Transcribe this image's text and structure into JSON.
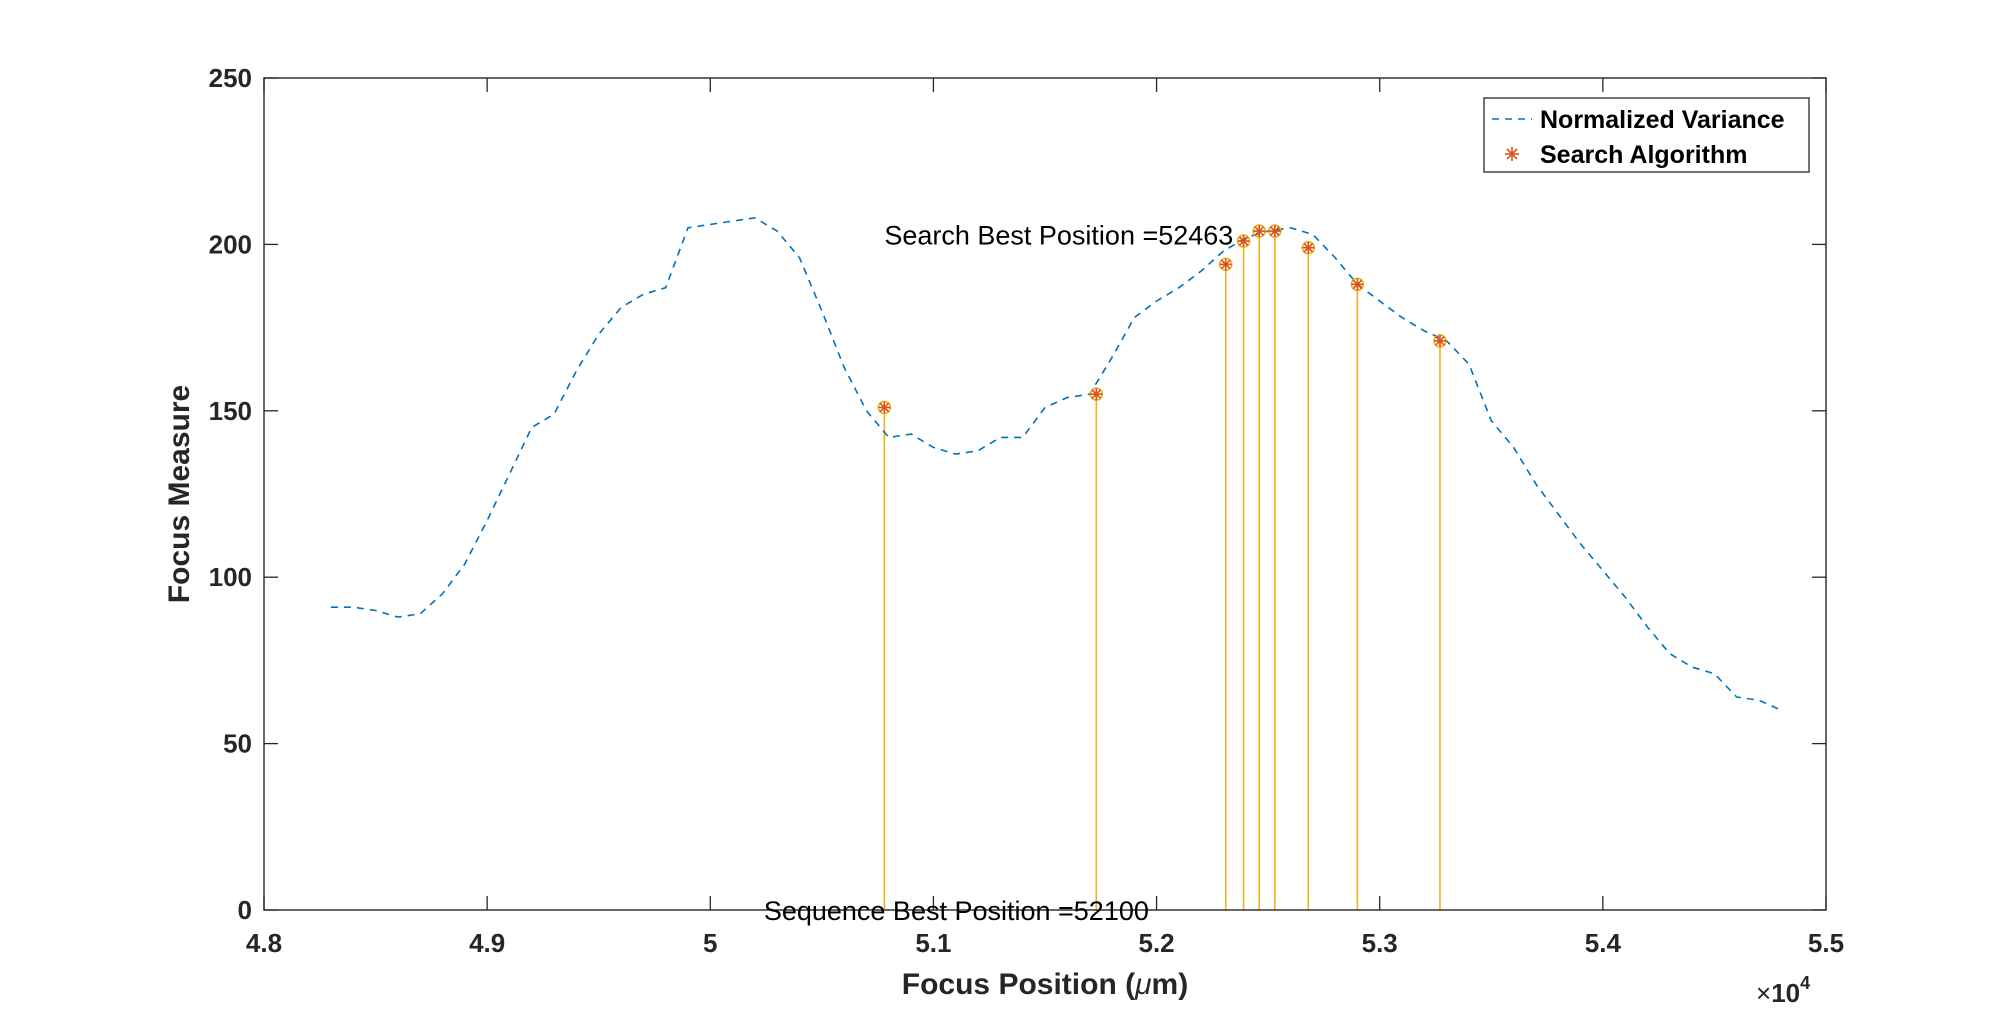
{
  "chart_data": {
    "type": "line",
    "xlabel": "Focus Position (μm)",
    "xlabel_parts": {
      "before": "Focus Position (",
      "mu": "μ",
      "after": "m)"
    },
    "ylabel": "Focus Measure",
    "x_multiplier": {
      "times": "×",
      "base": "10",
      "exponent": "4"
    },
    "xlim": [
      4.8,
      5.5
    ],
    "ylim": [
      0,
      250
    ],
    "x_ticks": [
      4.8,
      4.9,
      5.0,
      5.1,
      5.2,
      5.3,
      5.4,
      5.5
    ],
    "x_tick_labels": [
      "4.8",
      "4.9",
      "5",
      "5.1",
      "5.2",
      "5.3",
      "5.4",
      "5.5"
    ],
    "y_ticks": [
      0,
      50,
      100,
      150,
      200,
      250
    ],
    "y_tick_labels": [
      "0",
      "50",
      "100",
      "150",
      "200",
      "250"
    ],
    "grid": false,
    "legend_position": "top-right",
    "colors": {
      "line": "#0072BD",
      "marker": "#D95319",
      "stem": "#EDB120",
      "axis": "#262626"
    },
    "series": [
      {
        "name": "Normalized Variance",
        "style": "dashed-line",
        "x": [
          4.83,
          4.84,
          4.85,
          4.86,
          4.87,
          4.88,
          4.89,
          4.9,
          4.91,
          4.92,
          4.93,
          4.94,
          4.95,
          4.96,
          4.97,
          4.98,
          4.99,
          5.0,
          5.01,
          5.02,
          5.03,
          5.04,
          5.05,
          5.06,
          5.07,
          5.08,
          5.09,
          5.1,
          5.11,
          5.12,
          5.13,
          5.14,
          5.15,
          5.16,
          5.17,
          5.18,
          5.19,
          5.2,
          5.21,
          5.22,
          5.23,
          5.24,
          5.25,
          5.26,
          5.27,
          5.28,
          5.29,
          5.3,
          5.31,
          5.32,
          5.33,
          5.34,
          5.35,
          5.36,
          5.37,
          5.38,
          5.39,
          5.4,
          5.41,
          5.42,
          5.43,
          5.44,
          5.45,
          5.46,
          5.47,
          5.48
        ],
        "y": [
          91,
          91,
          90,
          88,
          89,
          95,
          104,
          117,
          131,
          145,
          149,
          162,
          173,
          181,
          185,
          187,
          205,
          206,
          207,
          208,
          204,
          196,
          180,
          163,
          150,
          142,
          143,
          139,
          137,
          138,
          142,
          142,
          151,
          154,
          155,
          166,
          178,
          183,
          187,
          192,
          198,
          202,
          204,
          205,
          203,
          196,
          188,
          183,
          178,
          174,
          171,
          164,
          147,
          139,
          128,
          119,
          110,
          102,
          94,
          85,
          77,
          73,
          71,
          64,
          63,
          60
        ]
      },
      {
        "name": "Search Algorithm",
        "style": "asterisk-markers-with-stems",
        "x": [
          5.078,
          5.173,
          5.231,
          5.239,
          5.246,
          5.253,
          5.268,
          5.29,
          5.327
        ],
        "y": [
          151,
          155,
          194,
          201,
          204,
          204,
          199,
          188,
          171
        ]
      }
    ],
    "annotations": [
      {
        "id": "search_best",
        "text": "Search Best Position =52463",
        "x": 5.078,
        "y": 200
      },
      {
        "id": "sequence_best",
        "text": "Sequence Best Position =52100",
        "x": 5.024,
        "y": -3
      }
    ]
  }
}
